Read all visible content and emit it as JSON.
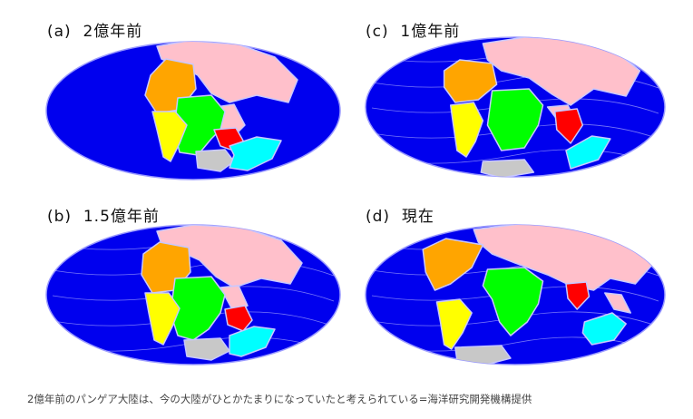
{
  "panels": [
    {
      "id": "a",
      "label": "(a)  2億年前"
    },
    {
      "id": "b",
      "label": "(b)  1.5億年前"
    },
    {
      "id": "c",
      "label": "(c)  1億年前"
    },
    {
      "id": "d",
      "label": "(d)  現在"
    }
  ],
  "caption": "2億年前のパンゲア大陸は、今の大陸がひとかたまりになっていたと考えられている=海洋研究開発機構提供",
  "colors": {
    "ocean": "#0000ee",
    "coastline": "#c8c8ff",
    "eurasia": "#ffc0cb",
    "north_america": "#ffa500",
    "south_america": "#ffff00",
    "africa": "#00ff00",
    "india": "#ff0000",
    "antarctica": "#c8c8c8",
    "australia": "#00ffff"
  }
}
